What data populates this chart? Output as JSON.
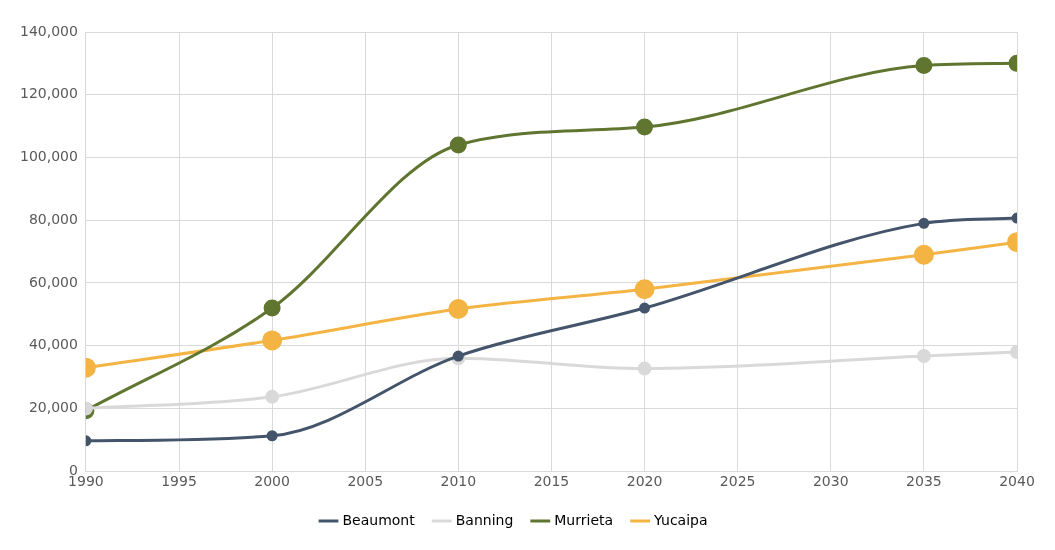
{
  "chart_data": {
    "type": "line",
    "x": [
      1990,
      2000,
      2010,
      2020,
      2035,
      2040
    ],
    "series": [
      {
        "name": "Beaumont",
        "color": "#44546a",
        "values": [
          9700,
          11300,
          36700,
          52000,
          79000,
          80700
        ]
      },
      {
        "name": "Banning",
        "color": "#d9d9d9",
        "values": [
          20000,
          23700,
          36000,
          32700,
          36700,
          38000
        ]
      },
      {
        "name": "Murrieta",
        "color": "#5f7530",
        "values": [
          19300,
          52000,
          104000,
          109700,
          129300,
          130000
        ]
      },
      {
        "name": "Yucaipa",
        "color": "#f4b443",
        "values": [
          33000,
          41700,
          51700,
          58000,
          69000,
          73000
        ]
      }
    ],
    "xlim": [
      1990,
      2040
    ],
    "xticks": [
      1990,
      1995,
      2000,
      2005,
      2010,
      2015,
      2020,
      2025,
      2030,
      2035,
      2040
    ],
    "ylim": [
      0,
      140000
    ],
    "yticks": [
      {
        "value": 0,
        "label": "0"
      },
      {
        "value": 20000,
        "label": "20,000"
      },
      {
        "value": 40000,
        "label": "40,000"
      },
      {
        "value": 60000,
        "label": "60,000"
      },
      {
        "value": 80000,
        "label": "80,000"
      },
      {
        "value": 100000,
        "label": "100,000"
      },
      {
        "value": 120000,
        "label": "120,000"
      },
      {
        "value": 140000,
        "label": "140,000"
      }
    ],
    "grid": true,
    "legend": "bottom",
    "marker": "circle",
    "line_style": "solid"
  }
}
